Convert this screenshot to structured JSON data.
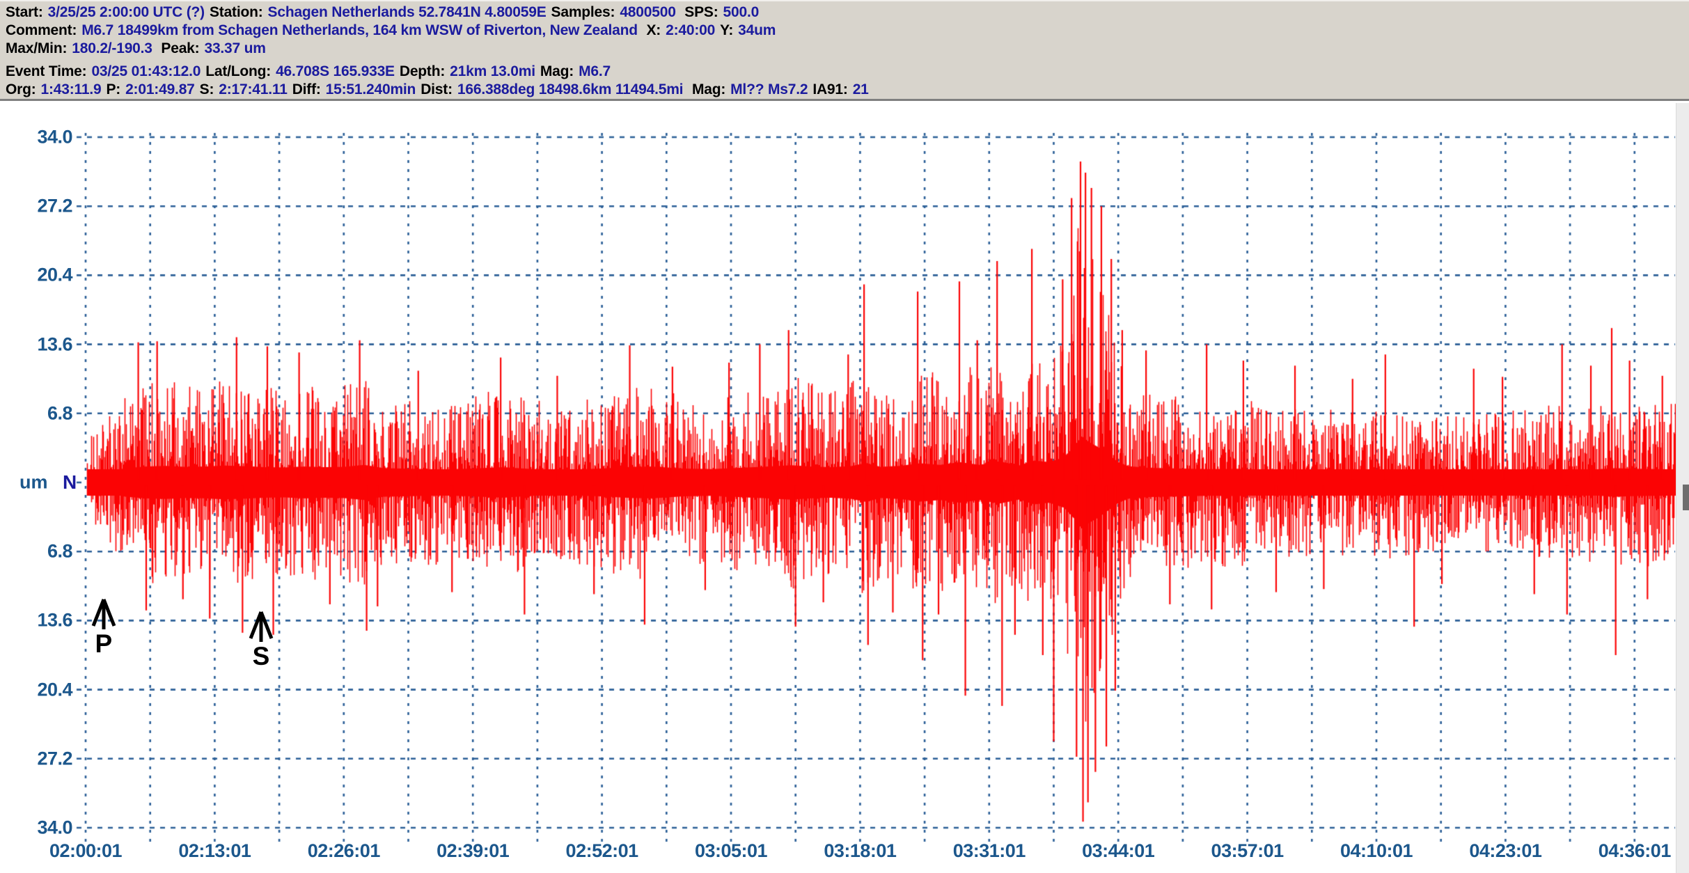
{
  "header": {
    "lines": [
      {
        "gap": false,
        "segments": [
          {
            "c": "k",
            "t": "Start:"
          },
          {
            "c": "b",
            "t": "3/25/25  2:00:00 UTC (?)"
          },
          {
            "c": "k",
            "t": "Station:"
          },
          {
            "c": "b",
            "t": "Schagen Netherlands 52.7841N 4.80059E"
          },
          {
            "c": "k",
            "t": "Samples:"
          },
          {
            "c": "b",
            "t": "4800500"
          },
          {
            "c": "k",
            "t": " SPS:"
          },
          {
            "c": "b",
            "t": "500.0"
          }
        ]
      },
      {
        "gap": false,
        "segments": [
          {
            "c": "k",
            "t": "Comment:"
          },
          {
            "c": "b",
            "t": "M6.7 18499km from Schagen Netherlands, 164 km WSW of Riverton, New Zealand"
          },
          {
            "c": "k",
            "t": "  X:"
          },
          {
            "c": "b",
            "t": "2:40:00"
          },
          {
            "c": "k",
            "t": "Y:"
          },
          {
            "c": "b",
            "t": "34um"
          }
        ]
      },
      {
        "gap": false,
        "segments": [
          {
            "c": "k",
            "t": "Max/Min:"
          },
          {
            "c": "b",
            "t": "180.2/-190.3"
          },
          {
            "c": "k",
            "t": " Peak:"
          },
          {
            "c": "b",
            "t": "33.37 um"
          }
        ]
      },
      {
        "gap": true,
        "segments": [
          {
            "c": "k",
            "t": "Event Time:"
          },
          {
            "c": "b",
            "t": "03/25 01:43:12.0"
          },
          {
            "c": "k",
            "t": "Lat/Long:"
          },
          {
            "c": "b",
            "t": "46.708S 165.933E"
          },
          {
            "c": "k",
            "t": "Depth:"
          },
          {
            "c": "b",
            "t": "21km 13.0mi"
          },
          {
            "c": "k",
            "t": "Mag:"
          },
          {
            "c": "b",
            "t": "M6.7"
          }
        ]
      },
      {
        "gap": false,
        "segments": [
          {
            "c": "k",
            "t": "Org:"
          },
          {
            "c": "b",
            "t": "1:43:11.9"
          },
          {
            "c": "k",
            "t": "P:"
          },
          {
            "c": "b",
            "t": "2:01:49.87"
          },
          {
            "c": "k",
            "t": "S:"
          },
          {
            "c": "b",
            "t": "2:17:41.11"
          },
          {
            "c": "k",
            "t": "Diff:"
          },
          {
            "c": "b",
            "t": "15:51.240min"
          },
          {
            "c": "k",
            "t": "Dist:"
          },
          {
            "c": "b",
            "t": "166.388deg 18498.6km 11494.5mi"
          },
          {
            "c": "k",
            "t": " Mag:"
          },
          {
            "c": "b",
            "t": "Ml?? Ms7.2"
          },
          {
            "c": "k",
            "t": "IA91:"
          },
          {
            "c": "b",
            "t": "21"
          }
        ]
      }
    ]
  },
  "axes": {
    "y_tick_labels": [
      "34.0",
      "27.2",
      "20.4",
      "13.6",
      "6.8"
    ],
    "y_unit": "um",
    "y_channel": "N",
    "x_tick_labels": [
      "02:00:01",
      "02:13:01",
      "02:26:01",
      "02:39:01",
      "02:52:01",
      "03:05:01",
      "03:18:01",
      "03:31:01",
      "03:44:01",
      "03:57:01",
      "04:10:01",
      "04:23:01",
      "04:36:01"
    ]
  },
  "markers": {
    "p": "P",
    "s": "S"
  },
  "colors": {
    "trace": "#fb0405",
    "grid": "#2b5f97",
    "axis_text": "#1c578c",
    "value_text": "#1b1b9e",
    "label_text": "#000000",
    "header_bg": "#d8d4cc"
  },
  "chart_data": {
    "type": "seismogram",
    "title": "Schagen Netherlands seismogram of M6.7 Riverton, New Zealand earthquake",
    "station": "Schagen Netherlands",
    "station_lat": "52.7841N",
    "station_lon": "4.80059E",
    "start": "3/25/25 2:00:00 UTC",
    "sps": 500.0,
    "samples": 4800500,
    "channel": "N",
    "y_unit": "um",
    "peak_um": 33.37,
    "max_min_counts": "180.2/-190.3",
    "cursor_readout": {
      "x": "2:40:00",
      "y": "34um"
    },
    "event": {
      "time": "03/25 01:43:12.0",
      "lat": "46.708S",
      "lon": "165.933E",
      "depth": "21km 13.0mi",
      "mag": "M6.7",
      "mag_list": "Ml?? Ms7.2",
      "ia91": 21,
      "origin": "1:43:11.9",
      "p_arrival": "2:01:49.87",
      "s_arrival": "2:17:41.11",
      "s_p_diff": "15:51.240min",
      "distance": "166.388deg 18498.6km 11494.5mi",
      "comment": "M6.7 18499km from Schagen Netherlands, 164 km WSW of Riverton, New Zealand"
    },
    "y_ticks_um": [
      34.0,
      27.2,
      20.4,
      13.6,
      6.8,
      0,
      -6.8,
      -13.6,
      -20.4,
      -27.2,
      -34.0
    ],
    "x_ticks": [
      "02:00:01",
      "02:13:01",
      "02:26:01",
      "02:39:01",
      "02:52:01",
      "03:05:01",
      "03:18:01",
      "03:31:01",
      "03:44:01",
      "03:57:01",
      "04:10:01",
      "04:23:01",
      "04:36:01"
    ],
    "x_minutes_per_label": 13,
    "envelope_keyframes_min_um": [
      [
        0,
        4.4
      ],
      [
        2,
        6.5
      ],
      [
        4,
        8.8
      ],
      [
        6,
        9.8
      ],
      [
        8,
        10.2
      ],
      [
        10,
        9.6
      ],
      [
        12,
        9.8
      ],
      [
        14,
        10.4
      ],
      [
        16,
        10.0
      ],
      [
        18,
        9.4
      ],
      [
        20,
        9.2
      ],
      [
        22,
        9.8
      ],
      [
        24,
        9.4
      ],
      [
        26,
        9.6
      ],
      [
        28,
        10.8
      ],
      [
        30,
        8.8
      ],
      [
        33,
        8.4
      ],
      [
        36,
        8.0
      ],
      [
        39,
        8.6
      ],
      [
        42,
        9.4
      ],
      [
        45,
        8.2
      ],
      [
        48,
        7.8
      ],
      [
        52,
        8.6
      ],
      [
        55,
        9.6
      ],
      [
        57,
        9.8
      ],
      [
        60,
        8.6
      ],
      [
        63,
        8.2
      ],
      [
        65,
        8.8
      ],
      [
        68,
        9.6
      ],
      [
        71,
        10.6
      ],
      [
        73,
        9.8
      ],
      [
        75,
        9.4
      ],
      [
        77,
        10.0
      ],
      [
        78.6,
        12.0
      ],
      [
        80,
        9.6
      ],
      [
        82,
        10.2
      ],
      [
        84,
        11.8
      ],
      [
        86,
        10.8
      ],
      [
        88,
        12.5
      ],
      [
        90,
        10.8
      ],
      [
        92,
        13.0
      ],
      [
        94,
        10.5
      ],
      [
        95.5,
        13.5
      ],
      [
        97,
        12.5
      ],
      [
        98.5,
        15.5
      ],
      [
        99.5,
        22.0
      ],
      [
        100.3,
        28.5
      ],
      [
        101,
        25.0
      ],
      [
        102,
        21.5
      ],
      [
        103,
        17.0
      ],
      [
        104,
        12.5
      ],
      [
        105,
        10.0
      ],
      [
        107,
        9.0
      ],
      [
        110,
        8.6
      ],
      [
        113,
        8.2
      ],
      [
        116,
        8.4
      ],
      [
        119,
        7.6
      ],
      [
        122,
        7.2
      ],
      [
        125,
        7.4
      ],
      [
        128,
        7.0
      ],
      [
        131,
        7.6
      ],
      [
        134,
        7.0
      ],
      [
        137,
        6.6
      ],
      [
        140,
        7.0
      ],
      [
        143,
        7.0
      ],
      [
        146,
        7.6
      ],
      [
        149,
        8.0
      ],
      [
        152,
        8.0
      ],
      [
        154,
        8.8
      ],
      [
        156,
        8.4
      ],
      [
        158.6,
        8.2
      ],
      [
        160.3,
        8.0
      ]
    ],
    "spikes_min_um": [
      [
        5.3,
        13.8
      ],
      [
        6.1,
        -12.6
      ],
      [
        7.2,
        13.9
      ],
      [
        9.8,
        -11.5
      ],
      [
        12.5,
        -13.4
      ],
      [
        15.2,
        14.3
      ],
      [
        15.8,
        -14.8
      ],
      [
        18.3,
        13.4
      ],
      [
        18.9,
        -15.0
      ],
      [
        21.5,
        12.8
      ],
      [
        24.6,
        -12.0
      ],
      [
        27.6,
        14.0
      ],
      [
        28.3,
        -14.6
      ],
      [
        29.4,
        -12.2
      ],
      [
        33.5,
        11.0
      ],
      [
        36.9,
        -10.8
      ],
      [
        41.8,
        12.3
      ],
      [
        44.2,
        -13.0
      ],
      [
        47.5,
        10.5
      ],
      [
        51.2,
        -11.0
      ],
      [
        54.8,
        13.5
      ],
      [
        56.3,
        -14.0
      ],
      [
        59.1,
        11.4
      ],
      [
        62.4,
        -10.6
      ],
      [
        64.8,
        11.8
      ],
      [
        67.9,
        13.6
      ],
      [
        70.8,
        15.0
      ],
      [
        71.5,
        -14.2
      ],
      [
        74.3,
        -11.8
      ],
      [
        76.8,
        12.6
      ],
      [
        78.4,
        19.5
      ],
      [
        78.8,
        -16.0
      ],
      [
        81.3,
        -12.8
      ],
      [
        83.8,
        18.8
      ],
      [
        84.3,
        -17.5
      ],
      [
        85.9,
        -13.0
      ],
      [
        88.0,
        19.8
      ],
      [
        88.6,
        -21.0
      ],
      [
        89.8,
        14.0
      ],
      [
        91.8,
        21.8
      ],
      [
        92.3,
        -22.0
      ],
      [
        93.6,
        -15.0
      ],
      [
        95.3,
        23.0
      ],
      [
        96.4,
        -17.0
      ],
      [
        97.5,
        -25.5
      ],
      [
        98.4,
        20.0
      ],
      [
        99.3,
        28.0
      ],
      [
        99.8,
        -27.0
      ],
      [
        100.2,
        31.6
      ],
      [
        100.45,
        -33.4
      ],
      [
        100.7,
        30.5
      ],
      [
        100.95,
        -31.5
      ],
      [
        101.3,
        29.0
      ],
      [
        101.7,
        -28.5
      ],
      [
        102.3,
        27.2
      ],
      [
        102.8,
        -26.0
      ],
      [
        103.3,
        22.0
      ],
      [
        103.7,
        -20.5
      ],
      [
        104.4,
        15.0
      ],
      [
        106.8,
        13.0
      ],
      [
        109.2,
        -12.0
      ],
      [
        112.9,
        13.6
      ],
      [
        113.4,
        -12.5
      ],
      [
        116.6,
        12.0
      ],
      [
        119.9,
        -10.8
      ],
      [
        121.8,
        11.5
      ],
      [
        124.7,
        -10.5
      ],
      [
        127.6,
        10.2
      ],
      [
        130.9,
        12.6
      ],
      [
        133.8,
        -14.2
      ],
      [
        136.6,
        -10.0
      ],
      [
        139.8,
        11.2
      ],
      [
        142.7,
        10.4
      ],
      [
        145.9,
        -11.0
      ],
      [
        148.7,
        13.6
      ],
      [
        149.2,
        -13.0
      ],
      [
        151.6,
        11.5
      ],
      [
        153.7,
        15.2
      ],
      [
        154.1,
        -17.0
      ],
      [
        155.5,
        12.0
      ],
      [
        157.3,
        -11.5
      ],
      [
        158.8,
        10.5
      ]
    ],
    "p_marker_min": 1.81,
    "s_marker_min": 17.67
  }
}
